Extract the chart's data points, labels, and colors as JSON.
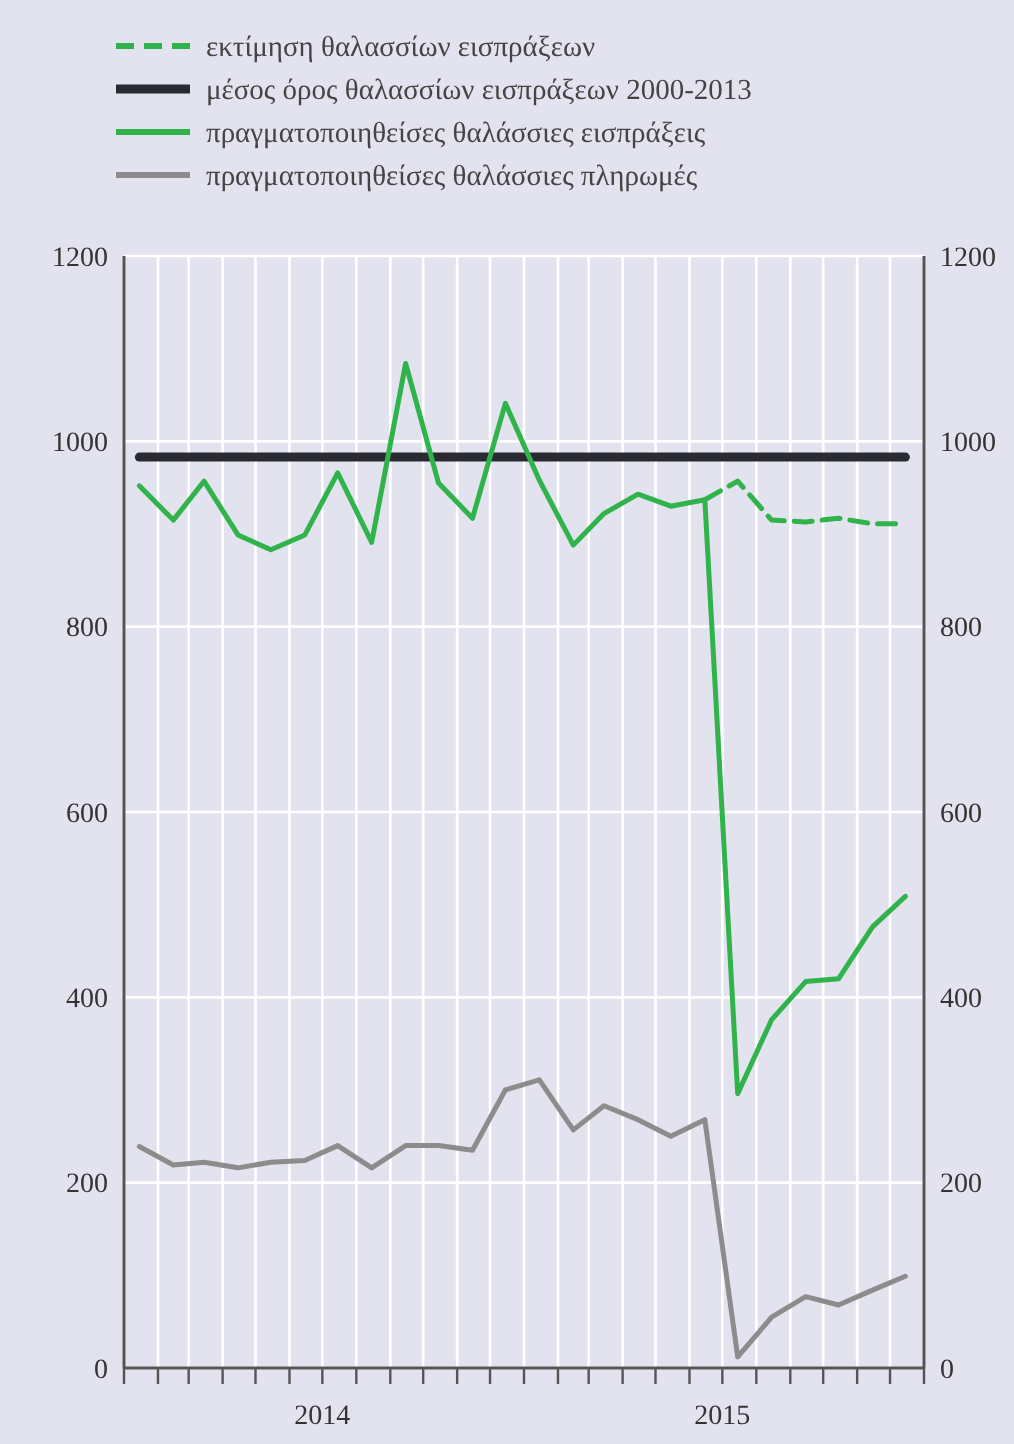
{
  "chart_data": {
    "type": "line",
    "x": [
      "2014-01-15",
      "2014-02-15",
      "2014-03-15",
      "2014-04-15",
      "2014-05-15",
      "2014-06-15",
      "2014-07-15",
      "2014-08-15",
      "2014-09-15",
      "2014-10-15",
      "2014-11-15",
      "2014-12-15",
      "2015-01-15",
      "2015-02-15",
      "2015-03-15",
      "2015-04-15",
      "2015-05-15",
      "2015-06-15",
      "2015-07-15",
      "2015-08-15",
      "2015-09-15",
      "2015-10-15",
      "2015-11-15",
      "2015-12-15"
    ],
    "series": [
      {
        "name": "εκτίμηση θαλασσίων εισπράξεων",
        "color": "#2fb34a",
        "line_style": "dashed",
        "x": [
          "2015-06-15",
          "2015-07-15",
          "2015-08-15",
          "2015-09-15",
          "2015-10-15",
          "2015-11-15",
          "2015-12-15"
        ],
        "values": [
          937,
          957,
          915,
          913,
          917,
          911,
          911
        ]
      },
      {
        "name": "μέσος όρος θαλασσίων εισπράξεων 2000-2013",
        "color": "#2a2a33",
        "x": [
          "2014-01-15",
          "2015-12-15"
        ],
        "values": [
          983,
          983
        ]
      },
      {
        "name": "πραγματοποιηθείσες θαλάσσιες εισπράξεις",
        "color": "#2fb34a",
        "values": [
          952,
          915,
          957,
          899,
          883,
          899,
          966,
          891,
          1084,
          955,
          917,
          1041,
          958,
          888,
          922,
          943,
          930,
          937,
          296,
          376,
          417,
          420,
          476,
          509
        ]
      },
      {
        "name": "πραγματοποιηθείσες θαλάσσιες πληρωμές",
        "color": "#8c8c8c",
        "values": [
          239,
          219,
          222,
          216,
          222,
          224,
          240,
          216,
          240,
          240,
          235,
          300,
          311,
          257,
          283,
          268,
          250,
          268,
          12,
          55,
          77,
          68,
          84,
          99
        ]
      }
    ],
    "xlim": [
      "2014-01-01",
      "2016-01-01"
    ],
    "xticks": [
      {
        "value": "2014-01-01",
        "label": null
      },
      {
        "value": "2014-02-01",
        "label": null
      },
      {
        "value": "2014-03-01",
        "label": null
      },
      {
        "value": "2014-04-01",
        "label": null
      },
      {
        "value": "2014-05-01",
        "label": null
      },
      {
        "value": "2014-06-01",
        "label": null
      },
      {
        "value": "2014-07-01",
        "label": "2014"
      },
      {
        "value": "2014-08-01",
        "label": null
      },
      {
        "value": "2014-09-01",
        "label": null
      },
      {
        "value": "2014-10-01",
        "label": null
      },
      {
        "value": "2014-11-01",
        "label": null
      },
      {
        "value": "2014-12-01",
        "label": null
      },
      {
        "value": "2015-01-01",
        "label": null
      },
      {
        "value": "2015-02-01",
        "label": null
      },
      {
        "value": "2015-03-01",
        "label": null
      },
      {
        "value": "2015-04-01",
        "label": null
      },
      {
        "value": "2015-05-01",
        "label": null
      },
      {
        "value": "2015-06-01",
        "label": null
      },
      {
        "value": "2015-07-01",
        "label": "2015"
      },
      {
        "value": "2015-08-01",
        "label": null
      },
      {
        "value": "2015-09-01",
        "label": null
      },
      {
        "value": "2015-10-01",
        "label": null
      },
      {
        "value": "2015-11-01",
        "label": null
      },
      {
        "value": "2015-12-01",
        "label": null
      },
      {
        "value": "2016-01-01",
        "label": null
      }
    ],
    "ylim": [
      0,
      1200
    ],
    "yticks": [
      0,
      200,
      400,
      600,
      800,
      1000,
      1200
    ],
    "y2lim": [
      0,
      1200
    ],
    "y2ticks": [
      0,
      200,
      400,
      600,
      800,
      1000,
      1200
    ],
    "grid": true,
    "legend": "top",
    "marker": "none",
    "line_style": "solid"
  }
}
